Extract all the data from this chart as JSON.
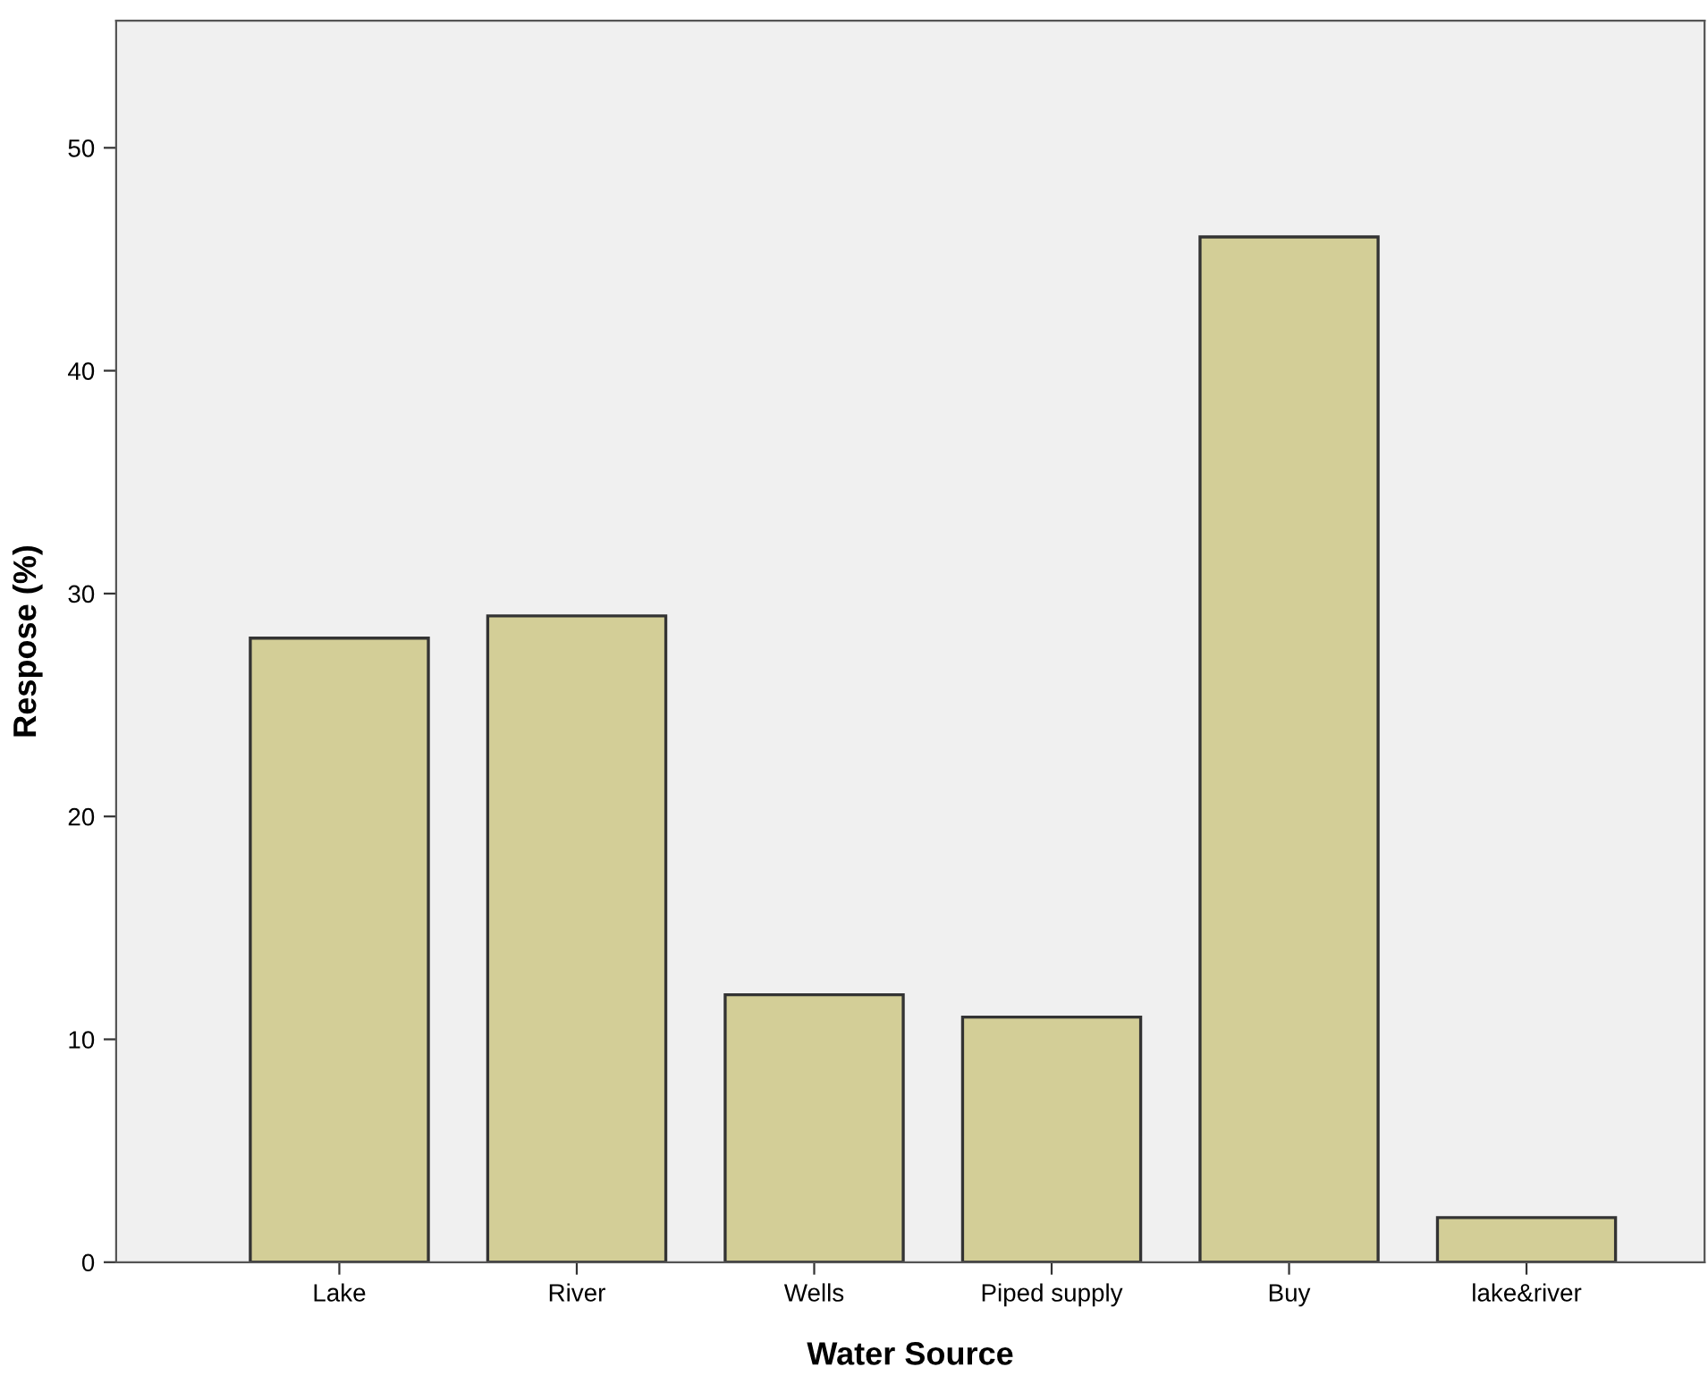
{
  "chart_data": {
    "type": "bar",
    "categories": [
      "Lake",
      "River",
      "Wells",
      "Piped supply",
      "Buy",
      "lake&river"
    ],
    "values": [
      28,
      29,
      12,
      11,
      46,
      2
    ],
    "color": "#d3ce97",
    "xlabel": "Water Source",
    "ylabel": "Respose (%)",
    "ylim": [
      0,
      55.7
    ],
    "yticks": [
      0,
      10,
      20,
      30,
      40,
      50
    ],
    "grid": false,
    "legend": false
  }
}
